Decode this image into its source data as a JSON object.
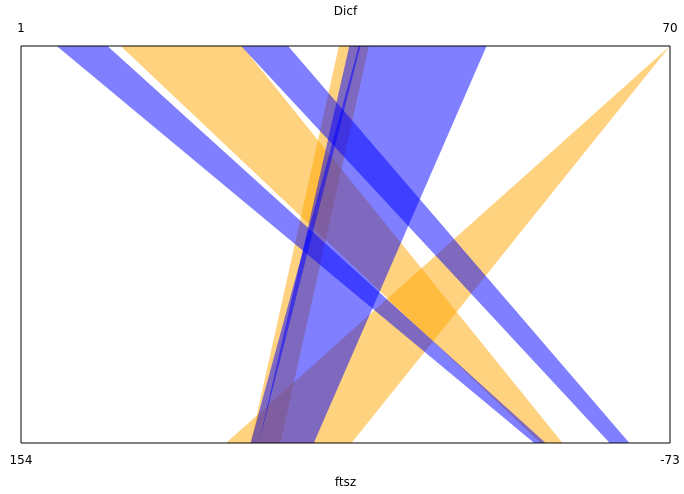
{
  "chart_data": {
    "type": "parallel_bands",
    "top_axis": {
      "label": "Dicf",
      "min_label": "1",
      "max_label": "70",
      "min": 1,
      "max": 70
    },
    "bottom_axis": {
      "label": "ftsz",
      "min_label": "154",
      "max_label": "-73",
      "min": 154,
      "max": -73
    },
    "colors": {
      "orange": "#FFA500",
      "blue": "#0000FF",
      "frame": "#000000"
    },
    "band_opacity": 0.5,
    "bands": [
      {
        "color": "orange",
        "top": [
          11.6,
          24.5
        ],
        "bottom": [
          -27.7,
          -35.4
        ]
      },
      {
        "color": "orange",
        "top": [
          70,
          70
        ],
        "bottom": [
          82.3,
          38.4
        ]
      },
      {
        "color": "orange",
        "top": [
          34.8,
          38.0
        ],
        "bottom": [
          73.7,
          63.3
        ]
      },
      {
        "color": "blue",
        "top": [
          4.8,
          10.2
        ],
        "bottom": [
          -25.5,
          -29.5
        ]
      },
      {
        "color": "blue",
        "top": [
          24.4,
          29.4
        ],
        "bottom": [
          -51.9,
          -58.8
        ]
      },
      {
        "color": "blue",
        "top": [
          35.9,
          50.5
        ],
        "bottom": [
          70.8,
          51.6
        ]
      },
      {
        "color": "blue",
        "top": [
          36.9,
          37.1
        ],
        "bottom": [
          73.7,
          70.8
        ]
      }
    ]
  }
}
